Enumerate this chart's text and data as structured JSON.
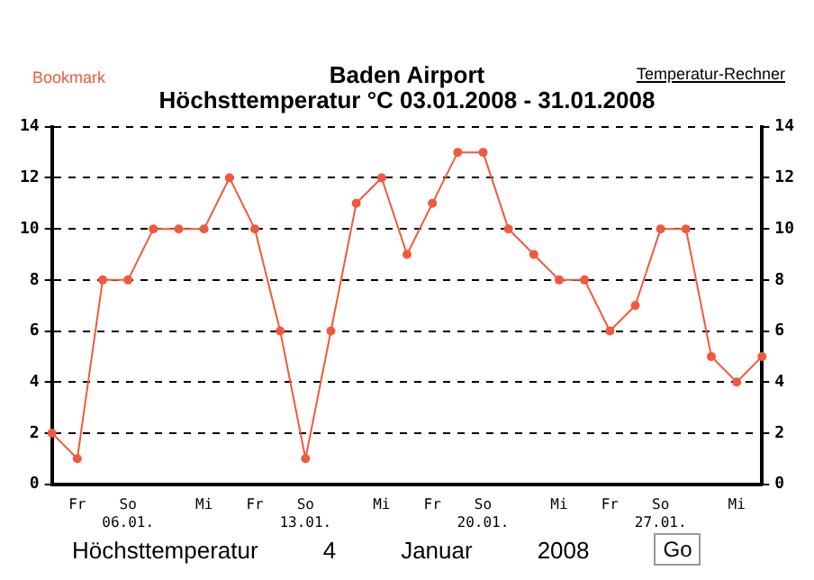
{
  "chart_data": {
    "type": "line",
    "title": "Baden Airport",
    "subtitle": "Höchsttemperatur °C 03.01.2008 - 31.01.2008",
    "annotations": [
      "Bookmark",
      "Temperatur-Rechner",
      "Höchsttemperatur",
      "4",
      "Januar",
      "2008",
      "Go"
    ],
    "categories": [
      null,
      "Fr",
      null,
      "So\n06.01.",
      null,
      null,
      "Mi",
      null,
      "Fr",
      null,
      "So\n13.01.",
      null,
      null,
      "Mi",
      null,
      "Fr",
      null,
      "So\n20.01.",
      null,
      null,
      "Mi",
      null,
      "Fr",
      null,
      "So\n27.01.",
      null,
      null,
      "Mi",
      null
    ],
    "series": [
      {
        "color": "#f05a3c",
        "values": [
          2,
          1,
          8,
          8,
          10,
          10,
          10,
          12,
          10,
          6,
          1,
          6,
          11,
          12,
          9,
          11,
          13,
          13,
          10,
          9,
          8,
          8,
          6,
          7,
          10,
          10,
          5,
          4,
          5
        ]
      }
    ],
    "ylim": [
      0,
      14
    ],
    "yticks": [
      0,
      2,
      4,
      6,
      8,
      10,
      12,
      14
    ],
    "y2lim": [
      0,
      14
    ],
    "y2ticks": [
      0,
      2,
      4,
      6,
      8,
      10,
      12,
      14
    ],
    "grid": "y",
    "marker": "circle",
    "line_style": "solid",
    "legend": false
  }
}
